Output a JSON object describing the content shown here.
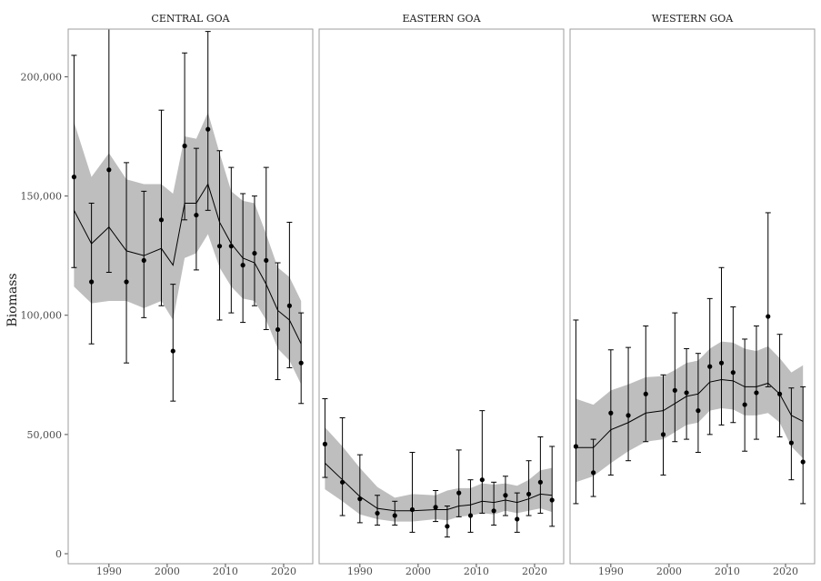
{
  "chart_data": {
    "type": "line",
    "ylabel": "Biomass",
    "xlabel": "",
    "title": "",
    "ylim": [
      0,
      220000
    ],
    "xlim": [
      1983,
      2025
    ],
    "xticks": [
      1990,
      2000,
      2010,
      2020
    ],
    "yticks": [
      0,
      50000,
      100000,
      150000,
      200000
    ],
    "ytick_labels": [
      "0",
      "50,000",
      "100,000",
      "150,000",
      "200,000"
    ],
    "xtick_labels": [
      "1990",
      "2000",
      "2010",
      "2020"
    ],
    "colors": {
      "ribbon": "#bebebe",
      "line": "#000000",
      "points": "#000000",
      "panel_border": "#9e9e9e",
      "strip_bg": "#ffffff"
    },
    "grid": false,
    "panels": [
      {
        "name": "CENTRAL GOA",
        "years": [
          1984,
          1987,
          1990,
          1993,
          1996,
          1999,
          2001,
          2003,
          2005,
          2007,
          2009,
          2011,
          2013,
          2015,
          2017,
          2019,
          2021,
          2023
        ],
        "observed": [
          158000,
          114000,
          161000,
          114000,
          123000,
          140000,
          85000,
          171000,
          142000,
          178000,
          129000,
          129000,
          121000,
          126000,
          123000,
          94000,
          104000,
          80000
        ],
        "obs_lower": [
          120000,
          88000,
          118000,
          80000,
          99000,
          104000,
          64000,
          140000,
          119000,
          144000,
          98000,
          101000,
          97000,
          104000,
          94000,
          73000,
          78000,
          63000
        ],
        "obs_upper": [
          209000,
          147000,
          220000,
          164000,
          152000,
          186000,
          113000,
          210000,
          170000,
          219000,
          169000,
          162000,
          151000,
          150000,
          162000,
          122000,
          139000,
          101000
        ],
        "est_years": [
          1984,
          1987,
          1990,
          1993,
          1996,
          1999,
          2001,
          2003,
          2005,
          2007,
          2009,
          2011,
          2013,
          2015,
          2017,
          2019,
          2021,
          2023
        ],
        "estimate": [
          144000,
          130000,
          137000,
          127000,
          125000,
          128000,
          121000,
          147000,
          147000,
          155000,
          139000,
          130000,
          124000,
          122000,
          113000,
          102000,
          98000,
          88000
        ],
        "est_lower": [
          112000,
          105000,
          106000,
          106000,
          103000,
          106000,
          98000,
          124000,
          126000,
          134000,
          120000,
          112000,
          107000,
          106000,
          98000,
          86000,
          81000,
          71000
        ],
        "est_upper": [
          181000,
          158000,
          168000,
          157000,
          155000,
          155000,
          151000,
          175000,
          174000,
          185000,
          168000,
          152000,
          148000,
          147000,
          134000,
          120000,
          116000,
          106000
        ]
      },
      {
        "name": "EASTERN GOA",
        "years": [
          1984,
          1987,
          1990,
          1993,
          1996,
          1999,
          2003,
          2005,
          2007,
          2009,
          2011,
          2013,
          2015,
          2017,
          2019,
          2021,
          2023
        ],
        "observed": [
          46000,
          30000,
          23000,
          17000,
          16000,
          18500,
          19500,
          11500,
          25500,
          16000,
          31000,
          18000,
          24500,
          14500,
          25000,
          30000,
          22500
        ],
        "obs_lower": [
          32000,
          16000,
          13000,
          12000,
          12000,
          9000,
          13500,
          7000,
          15500,
          9000,
          17000,
          12000,
          16000,
          9000,
          16000,
          17000,
          11500
        ],
        "obs_upper": [
          65000,
          57000,
          41500,
          24500,
          22000,
          42500,
          26500,
          20000,
          43500,
          31000,
          60000,
          30000,
          32500,
          25500,
          39000,
          49000,
          45000
        ],
        "est_years": [
          1984,
          1987,
          1990,
          1993,
          1996,
          1999,
          2003,
          2005,
          2007,
          2009,
          2011,
          2013,
          2015,
          2017,
          2019,
          2021,
          2023
        ],
        "estimate": [
          38000,
          31000,
          24000,
          19000,
          18000,
          18000,
          18500,
          18500,
          20000,
          20500,
          22000,
          21500,
          22500,
          21500,
          23000,
          25000,
          24500
        ],
        "est_lower": [
          27000,
          22000,
          16500,
          14500,
          13500,
          13500,
          14500,
          14000,
          15500,
          16000,
          17000,
          16500,
          18000,
          17000,
          18000,
          19000,
          17500
        ],
        "est_upper": [
          53000,
          45000,
          36000,
          28000,
          23500,
          25000,
          24500,
          26500,
          27500,
          27500,
          29500,
          29000,
          29500,
          28500,
          31000,
          35000,
          36000
        ]
      },
      {
        "name": "WESTERN GOA",
        "years": [
          1984,
          1987,
          1990,
          1993,
          1996,
          1999,
          2001,
          2003,
          2005,
          2007,
          2009,
          2011,
          2013,
          2015,
          2017,
          2019,
          2021,
          2023
        ],
        "observed": [
          45000,
          34000,
          59000,
          58000,
          67000,
          50000,
          68500,
          67500,
          60000,
          78500,
          80000,
          76000,
          62500,
          67500,
          99500,
          67000,
          46500,
          38500
        ],
        "obs_lower": [
          21000,
          24000,
          33000,
          39000,
          47000,
          33000,
          47000,
          48000,
          42500,
          50000,
          54000,
          55000,
          43000,
          48000,
          70000,
          49000,
          31000,
          21000
        ],
        "obs_upper": [
          98000,
          48000,
          85500,
          86500,
          95500,
          75000,
          101000,
          86000,
          84000,
          107000,
          120000,
          103500,
          90000,
          95500,
          143000,
          92000,
          69500,
          70000
        ],
        "est_years": [
          1984,
          1987,
          1990,
          1993,
          1996,
          1999,
          2001,
          2003,
          2005,
          2007,
          2009,
          2011,
          2013,
          2015,
          2017,
          2019,
          2021,
          2023
        ],
        "estimate": [
          44500,
          44500,
          52000,
          55000,
          59000,
          60000,
          63000,
          66000,
          67000,
          72000,
          73000,
          72500,
          70000,
          70000,
          71500,
          67000,
          58000,
          55500
        ],
        "est_lower": [
          30000,
          32500,
          38000,
          43000,
          47000,
          48000,
          51000,
          54000,
          55000,
          60000,
          61000,
          60500,
          58000,
          58000,
          59000,
          55000,
          45000,
          40000
        ],
        "est_upper": [
          65000,
          62500,
          68500,
          71000,
          74000,
          74500,
          77000,
          80000,
          81000,
          86000,
          89000,
          88500,
          86000,
          85000,
          87000,
          82000,
          76000,
          79000
        ]
      }
    ]
  }
}
